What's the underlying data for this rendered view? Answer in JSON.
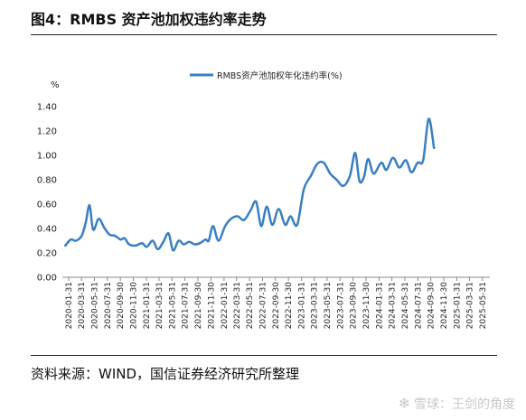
{
  "figure": {
    "title": "图4：RMBS 资产池加权违约率走势",
    "source": "资料来源：WIND，国信证券经济研究所整理",
    "watermark": "雪球：王剑的角度"
  },
  "colors": {
    "line": "#3a7fc1",
    "axis": "#888888"
  },
  "chart_data": {
    "type": "line",
    "ylabel": "%",
    "ylim": [
      0,
      1.4
    ],
    "yticks": [
      "0.00",
      "0.20",
      "0.40",
      "0.60",
      "0.80",
      "1.00",
      "1.20",
      "1.40"
    ],
    "legend_position": "top-center",
    "x_tick_labels": [
      "2020-01-31",
      "2020-03-31",
      "2020-05-31",
      "2020-07-31",
      "2020-09-30",
      "2020-11-30",
      "2021-01-31",
      "2021-03-31",
      "2021-05-31",
      "2021-07-31",
      "2021-09-30",
      "2021-11-30",
      "2022-01-31",
      "2022-03-31",
      "2022-05-31",
      "2022-07-31",
      "2022-09-30",
      "2022-11-30",
      "2023-01-31",
      "2023-03-31",
      "2023-05-31",
      "2023-07-31",
      "2023-09-30",
      "2023-11-30",
      "2024-01-31",
      "2024-03-31",
      "2024-05-31",
      "2024-07-31",
      "2024-09-30",
      "2024-11-30",
      "2025-01-31",
      "2025-03-31",
      "2025-05-31"
    ],
    "series": [
      {
        "name": "RMBS资产池加权年化违约率(%)",
        "points": [
          [
            "2020-01-15",
            0.26
          ],
          [
            "2020-02-10",
            0.31
          ],
          [
            "2020-03-05",
            0.3
          ],
          [
            "2020-04-01",
            0.34
          ],
          [
            "2020-04-20",
            0.45
          ],
          [
            "2020-05-08",
            0.59
          ],
          [
            "2020-05-25",
            0.39
          ],
          [
            "2020-06-20",
            0.48
          ],
          [
            "2020-07-15",
            0.41
          ],
          [
            "2020-08-10",
            0.35
          ],
          [
            "2020-09-05",
            0.34
          ],
          [
            "2020-10-01",
            0.31
          ],
          [
            "2020-10-20",
            0.32
          ],
          [
            "2020-11-10",
            0.27
          ],
          [
            "2020-12-10",
            0.26
          ],
          [
            "2021-01-10",
            0.28
          ],
          [
            "2021-02-01",
            0.25
          ],
          [
            "2021-03-01",
            0.3
          ],
          [
            "2021-03-25",
            0.23
          ],
          [
            "2021-04-20",
            0.29
          ],
          [
            "2021-05-15",
            0.36
          ],
          [
            "2021-06-05",
            0.22
          ],
          [
            "2021-07-01",
            0.3
          ],
          [
            "2021-07-25",
            0.27
          ],
          [
            "2021-08-20",
            0.29
          ],
          [
            "2021-09-15",
            0.27
          ],
          [
            "2021-10-10",
            0.28
          ],
          [
            "2021-11-05",
            0.31
          ],
          [
            "2021-11-20",
            0.3
          ],
          [
            "2021-12-10",
            0.42
          ],
          [
            "2022-01-05",
            0.3
          ],
          [
            "2022-02-05",
            0.42
          ],
          [
            "2022-03-05",
            0.48
          ],
          [
            "2022-04-05",
            0.5
          ],
          [
            "2022-05-05",
            0.47
          ],
          [
            "2022-06-05",
            0.55
          ],
          [
            "2022-07-01",
            0.62
          ],
          [
            "2022-07-25",
            0.42
          ],
          [
            "2022-08-20",
            0.58
          ],
          [
            "2022-09-15",
            0.43
          ],
          [
            "2022-10-15",
            0.56
          ],
          [
            "2022-11-15",
            0.43
          ],
          [
            "2022-12-10",
            0.5
          ],
          [
            "2023-01-10",
            0.43
          ],
          [
            "2023-02-10",
            0.72
          ],
          [
            "2023-03-15",
            0.83
          ],
          [
            "2023-04-15",
            0.93
          ],
          [
            "2023-05-15",
            0.94
          ],
          [
            "2023-06-15",
            0.85
          ],
          [
            "2023-07-15",
            0.8
          ],
          [
            "2023-08-15",
            0.75
          ],
          [
            "2023-09-15",
            0.83
          ],
          [
            "2023-10-10",
            1.02
          ],
          [
            "2023-10-30",
            0.79
          ],
          [
            "2023-11-20",
            0.82
          ],
          [
            "2023-12-10",
            0.97
          ],
          [
            "2024-01-05",
            0.85
          ],
          [
            "2024-02-10",
            0.94
          ],
          [
            "2024-03-05",
            0.88
          ],
          [
            "2024-04-05",
            0.98
          ],
          [
            "2024-05-05",
            0.9
          ],
          [
            "2024-06-05",
            0.96
          ],
          [
            "2024-07-01",
            0.86
          ],
          [
            "2024-07-30",
            0.94
          ],
          [
            "2024-08-25",
            0.96
          ],
          [
            "2024-09-20",
            1.3
          ],
          [
            "2024-10-15",
            1.06
          ]
        ]
      }
    ]
  }
}
